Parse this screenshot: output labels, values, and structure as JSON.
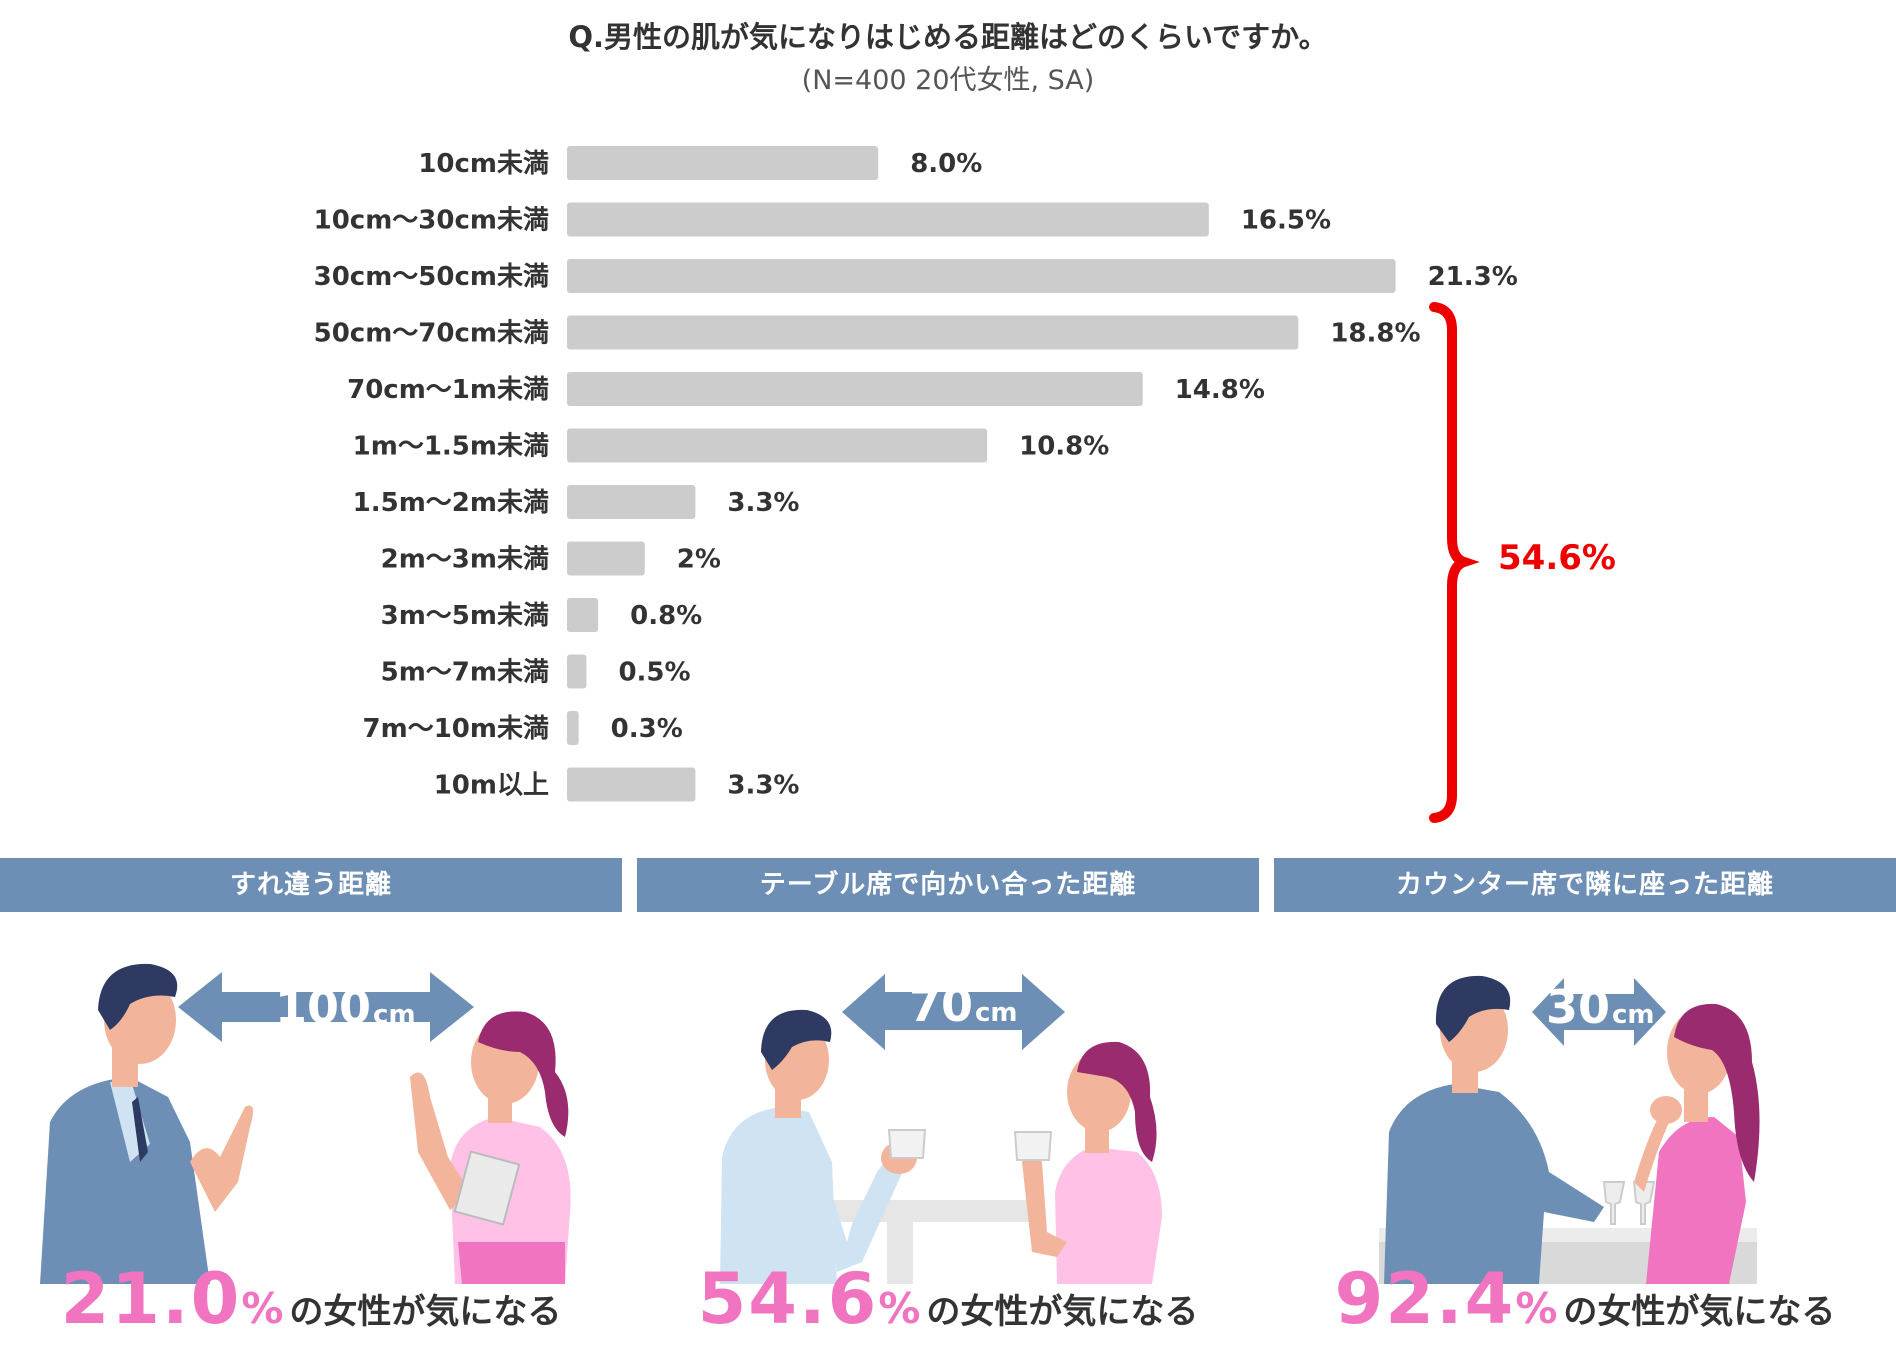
{
  "header": {
    "title": "Q.男性の肌が気になりはじめる距離はどのくらいですか。",
    "subtitle": "(N=400 20代女性, SA)"
  },
  "chart_data": {
    "type": "bar",
    "orientation": "horizontal",
    "categories": [
      "10cm未満",
      "10cm～30cm未満",
      "30cm～50cm未満",
      "50cm～70cm未満",
      "70cm～1m未満",
      "1m～1.5m未満",
      "1.5m～2m未満",
      "2m～3m未満",
      "3m～5m未満",
      "5m～7m未満",
      "7m～10m未満",
      "10m以上"
    ],
    "values": [
      8.0,
      16.5,
      21.3,
      18.8,
      14.8,
      10.8,
      3.3,
      2,
      0.8,
      0.5,
      0.3,
      3.3
    ],
    "value_labels": [
      "8.0%",
      "16.5%",
      "21.3%",
      "18.8%",
      "14.8%",
      "10.8%",
      "3.3%",
      "2%",
      "0.8%",
      "0.5%",
      "0.3%",
      "3.3%"
    ],
    "bar_color": "#cccccc",
    "annotation": {
      "label": "54.6%",
      "from_category": "50cm～70cm未満",
      "to_category": "10m以上",
      "color": "#ee0000"
    }
  },
  "panels": [
    {
      "heading": "すれ違う距離",
      "distance_num": "100",
      "distance_unit": "cm",
      "percent": "21.0",
      "percent_sym": "%",
      "caption": "の女性が気になる"
    },
    {
      "heading": "テーブル席で向かい合った距離",
      "distance_num": "70",
      "distance_unit": "cm",
      "percent": "54.6",
      "percent_sym": "%",
      "caption": "の女性が気になる"
    },
    {
      "heading": "カウンター席で隣に座った距離",
      "distance_num": "30",
      "distance_unit": "cm",
      "percent": "92.4",
      "percent_sym": "%",
      "caption": "の女性が気になる"
    }
  ],
  "colors": {
    "header_band": "#6e8fb5",
    "accent_pink": "#f074bf",
    "arrow": "#6e8fb5",
    "man_hair": "#2f3a63",
    "woman_hair": "#9a2b6e",
    "skin": "#f2b59b"
  }
}
